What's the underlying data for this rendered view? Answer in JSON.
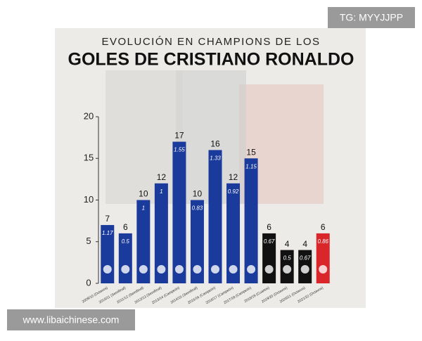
{
  "watermark_top": "TG: MYYJJPP",
  "watermark_bottom": "www.libaichinese.com",
  "chart_data": {
    "type": "bar",
    "title": "EVOLUCIÓN EN CHAMPIONS DE LOS",
    "subtitle": "GOLES DE CRISTIANO RONALDO",
    "categories": [
      "2009/10 (Octavos)",
      "2010/11 (Semifinal)",
      "2011/12 (Semifinal)",
      "2012/13 (Semifinal)",
      "2013/14 (Campeón)",
      "2014/15 (Semifinal)",
      "2015/16 (Campeón)",
      "2016/17 (Campeón)",
      "2017/18 (Campeón)",
      "2018/19 (Cuartos)",
      "2019/20 (Octavos)",
      "2020/21 (Octavos)",
      "2021/22 (Octavos)"
    ],
    "values": [
      7,
      6,
      10,
      12,
      17,
      10,
      16,
      12,
      15,
      6,
      4,
      4,
      6
    ],
    "ratios": [
      1.17,
      0.5,
      1,
      1,
      1.55,
      0.83,
      1.33,
      0.92,
      1.15,
      0.67,
      0.5,
      0.67,
      0.86
    ],
    "colors": [
      "#1b3b9c",
      "#1b3b9c",
      "#1b3b9c",
      "#1b3b9c",
      "#1b3b9c",
      "#1b3b9c",
      "#1b3b9c",
      "#1b3b9c",
      "#1b3b9c",
      "#111111",
      "#111111",
      "#111111",
      "#d8262b"
    ],
    "ylim": [
      0,
      20
    ],
    "yticks": [
      0,
      5,
      10,
      15,
      20
    ]
  }
}
